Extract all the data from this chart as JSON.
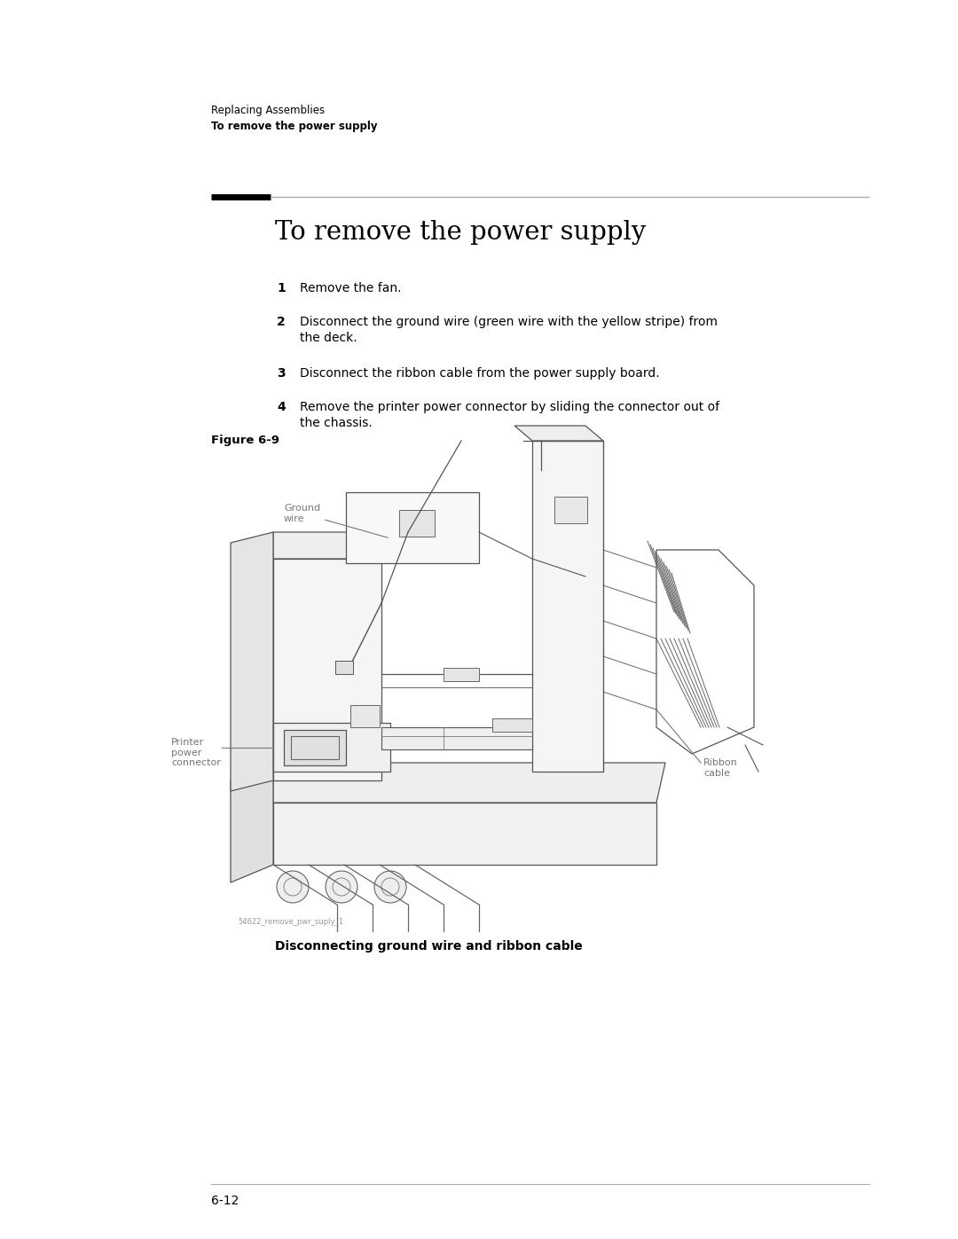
{
  "bg_color": "#ffffff",
  "page_width": 10.8,
  "page_height": 13.97,
  "header_small": "Replacing Assemblies",
  "header_bold": "To remove the power supply",
  "section_title": "To remove the power supply",
  "steps": [
    {
      "num": "1",
      "text1": "Remove the fan.",
      "text2": ""
    },
    {
      "num": "2",
      "text1": "Disconnect the ground wire (green wire with the yellow stripe) from",
      "text2": "the deck."
    },
    {
      "num": "3",
      "text1": "Disconnect the ribbon cable from the power supply board.",
      "text2": ""
    },
    {
      "num": "4",
      "text1": "Remove the printer power connector by sliding the connector out of",
      "text2": "the chassis."
    }
  ],
  "figure_label": "Figure 6-9",
  "caption_bold": "Disconnecting ground wire and ribbon cable",
  "img_label": "54622_remove_pwr_suply_1",
  "page_number": "6-12",
  "text_color": "#000000",
  "gray_color": "#555555",
  "annot_color": "#777777"
}
